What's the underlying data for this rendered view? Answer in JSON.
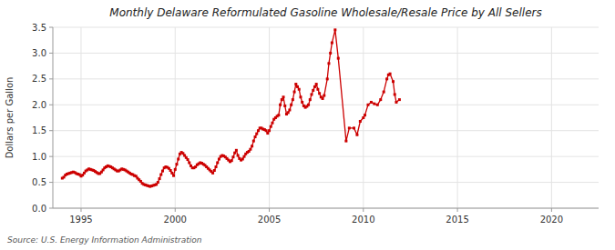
{
  "chart_data": {
    "type": "line",
    "title": "Monthly Delaware Reformulated Gasoline Wholesale/Resale Price by All Sellers",
    "ylabel": "Dollars per Gallon",
    "annotations": [
      "Source: U.S. Energy Information Administration"
    ],
    "color": "#cc0000",
    "marker": "square",
    "line_style": "solid",
    "grid": true,
    "xlim": [
      1993.5,
      2022.5
    ],
    "ylim": [
      0.0,
      3.5
    ],
    "xticks": [
      1995,
      2000,
      2005,
      2010,
      2015,
      2020
    ],
    "yticks": [
      {
        "value": 0.0,
        "label": "0.0"
      },
      0.5,
      {
        "value": 1.0,
        "label": "1.0"
      },
      1.5,
      {
        "value": 2.0,
        "label": "2.0"
      },
      2.5,
      {
        "value": 3.0,
        "label": "3.0"
      },
      3.5
    ],
    "x": [
      1994.0,
      1994.083,
      1994.167,
      1994.25,
      1994.333,
      1994.417,
      1994.5,
      1994.583,
      1994.667,
      1994.75,
      1994.833,
      1994.917,
      1995.0,
      1995.083,
      1995.167,
      1995.25,
      1995.333,
      1995.417,
      1995.5,
      1995.583,
      1995.667,
      1995.75,
      1995.833,
      1995.917,
      1996.0,
      1996.083,
      1996.167,
      1996.25,
      1996.333,
      1996.417,
      1996.5,
      1996.583,
      1996.667,
      1996.75,
      1996.833,
      1996.917,
      1997.0,
      1997.083,
      1997.167,
      1997.25,
      1997.333,
      1997.417,
      1997.5,
      1997.583,
      1997.667,
      1997.75,
      1997.833,
      1997.917,
      1998.0,
      1998.083,
      1998.167,
      1998.25,
      1998.333,
      1998.417,
      1998.5,
      1998.583,
      1998.667,
      1998.75,
      1998.833,
      1998.917,
      1999.0,
      1999.083,
      1999.167,
      1999.25,
      1999.333,
      1999.417,
      1999.5,
      1999.583,
      1999.667,
      1999.75,
      1999.833,
      1999.917,
      2000.0,
      2000.083,
      2000.167,
      2000.25,
      2000.333,
      2000.417,
      2000.5,
      2000.583,
      2000.667,
      2000.75,
      2000.833,
      2000.917,
      2001.0,
      2001.083,
      2001.167,
      2001.25,
      2001.333,
      2001.417,
      2001.5,
      2001.583,
      2001.667,
      2001.75,
      2001.833,
      2001.917,
      2002.0,
      2002.083,
      2002.167,
      2002.25,
      2002.333,
      2002.417,
      2002.5,
      2002.583,
      2002.667,
      2002.75,
      2002.833,
      2002.917,
      2003.0,
      2003.083,
      2003.167,
      2003.25,
      2003.333,
      2003.417,
      2003.5,
      2003.583,
      2003.667,
      2003.75,
      2003.833,
      2003.917,
      2004.0,
      2004.083,
      2004.167,
      2004.25,
      2004.333,
      2004.417,
      2004.5,
      2004.583,
      2004.667,
      2004.75,
      2004.833,
      2004.917,
      2005.0,
      2005.083,
      2005.167,
      2005.25,
      2005.333,
      2005.417,
      2005.5,
      2005.583,
      2005.667,
      2005.75,
      2005.833,
      2005.917,
      2006.0,
      2006.083,
      2006.167,
      2006.25,
      2006.333,
      2006.417,
      2006.5,
      2006.583,
      2006.667,
      2006.75,
      2006.833,
      2006.917,
      2007.0,
      2007.083,
      2007.167,
      2007.25,
      2007.333,
      2007.417,
      2007.5,
      2007.583,
      2007.667,
      2007.75,
      2007.833,
      2007.917,
      2008.083,
      2008.167,
      2008.25,
      2008.333,
      2008.5,
      2008.667,
      2009.083,
      2009.25,
      2009.5,
      2009.667,
      2009.833,
      2010.0,
      2010.083,
      2010.25,
      2010.417,
      2010.583,
      2010.75,
      2010.917,
      2011.083,
      2011.25,
      2011.333,
      2011.417,
      2011.583,
      2011.667,
      2011.75,
      2011.917
    ],
    "values": [
      0.58,
      0.6,
      0.64,
      0.66,
      0.67,
      0.68,
      0.69,
      0.7,
      0.69,
      0.67,
      0.66,
      0.65,
      0.62,
      0.64,
      0.68,
      0.72,
      0.74,
      0.76,
      0.75,
      0.74,
      0.73,
      0.71,
      0.69,
      0.67,
      0.67,
      0.7,
      0.74,
      0.78,
      0.8,
      0.82,
      0.81,
      0.8,
      0.78,
      0.76,
      0.74,
      0.72,
      0.72,
      0.74,
      0.76,
      0.75,
      0.74,
      0.72,
      0.7,
      0.68,
      0.66,
      0.65,
      0.63,
      0.62,
      0.58,
      0.55,
      0.52,
      0.48,
      0.46,
      0.45,
      0.44,
      0.43,
      0.42,
      0.43,
      0.44,
      0.45,
      0.46,
      0.5,
      0.57,
      0.65,
      0.72,
      0.78,
      0.8,
      0.79,
      0.77,
      0.73,
      0.68,
      0.63,
      0.75,
      0.85,
      0.95,
      1.05,
      1.08,
      1.06,
      1.02,
      0.98,
      0.94,
      0.88,
      0.82,
      0.78,
      0.78,
      0.8,
      0.84,
      0.86,
      0.88,
      0.87,
      0.85,
      0.83,
      0.8,
      0.77,
      0.74,
      0.71,
      0.68,
      0.73,
      0.8,
      0.88,
      0.95,
      1.0,
      1.02,
      1.01,
      0.99,
      0.96,
      0.93,
      0.9,
      0.92,
      0.99,
      1.07,
      1.12,
      1.02,
      0.96,
      0.93,
      0.95,
      1.0,
      1.05,
      1.08,
      1.1,
      1.14,
      1.2,
      1.3,
      1.38,
      1.44,
      1.5,
      1.55,
      1.55,
      1.53,
      1.52,
      1.5,
      1.45,
      1.5,
      1.58,
      1.65,
      1.72,
      1.75,
      1.78,
      1.8,
      2.0,
      2.1,
      2.15,
      1.98,
      1.82,
      1.85,
      1.9,
      2.0,
      2.1,
      2.25,
      2.4,
      2.35,
      2.3,
      2.15,
      2.05,
      1.98,
      1.95,
      1.97,
      2.0,
      2.1,
      2.2,
      2.28,
      2.35,
      2.4,
      2.3,
      2.22,
      2.15,
      2.12,
      2.18,
      2.5,
      2.8,
      3.0,
      3.2,
      3.45,
      2.9,
      1.3,
      1.55,
      1.55,
      1.42,
      1.68,
      1.75,
      1.8,
      2.0,
      2.05,
      2.02,
      2.0,
      2.1,
      2.25,
      2.5,
      2.58,
      2.6,
      2.45,
      2.2,
      2.05,
      2.1
    ]
  }
}
